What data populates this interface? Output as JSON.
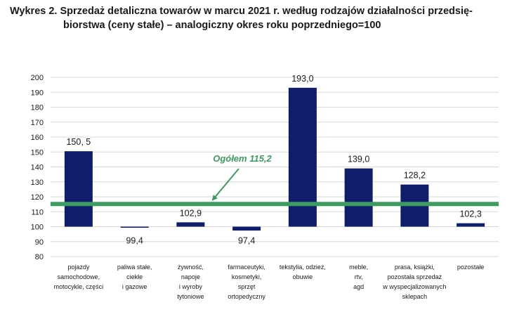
{
  "title_line1": "Wykres 2. Sprzedaż detaliczna towarów w marcu 2021 r. według rodzajów działalności przedsię-",
  "title_line2": "biorstwa (ceny stałe) – analogiczny okres roku poprzedniego=100",
  "chart_data": {
    "type": "bar",
    "baseline": 100,
    "ylim": [
      80,
      200
    ],
    "yticks": [
      80,
      90,
      100,
      110,
      120,
      130,
      140,
      150,
      160,
      170,
      180,
      190,
      200
    ],
    "grid": true,
    "colors": {
      "bar": "#0f1d6b",
      "reference": "#3d9c5f",
      "grid": "#d9d9d9"
    },
    "categories": [
      [
        "pojazdy",
        "samochodowe,",
        "motocykle, części"
      ],
      [
        "paliwa stałe,",
        "ciekłe",
        "i gazowe"
      ],
      [
        "żywność,",
        "napoje",
        "i wyroby",
        "tytoniowe"
      ],
      [
        "farmaceutyki,",
        "kosmetyki,",
        "sprzęt",
        "ortopedyczny"
      ],
      [
        "tekstylia, odzież,",
        "obuwie"
      ],
      [
        "meble,",
        "rtv,",
        "agd"
      ],
      [
        "prasa, książki,",
        "pozostała sprzedaż",
        "w wyspecjalizowanych",
        "sklepach"
      ],
      [
        "pozostałe"
      ]
    ],
    "values": [
      150.5,
      99.4,
      102.9,
      97.4,
      193.0,
      139.0,
      128.2,
      102.3
    ],
    "value_labels": [
      "150, 5",
      "99,4",
      "102,9",
      "97,4",
      "193,0",
      "139,0",
      "128,2",
      "102,3"
    ],
    "reference": {
      "value": 115.2,
      "label": "Ogółem 115,2"
    }
  }
}
